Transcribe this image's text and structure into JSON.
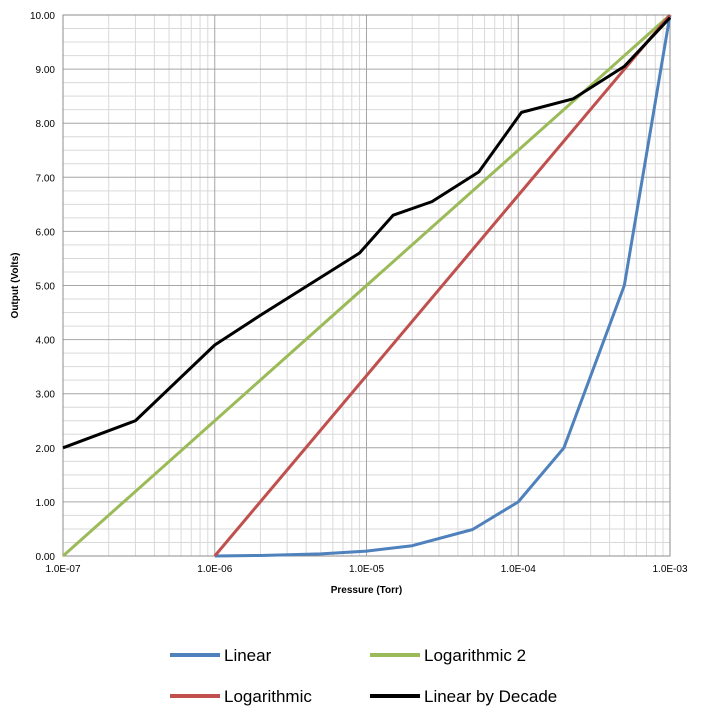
{
  "chart_data": {
    "type": "line",
    "title": "",
    "xlabel": "Pressure (Torr)",
    "ylabel": "Output (Volts)",
    "x_scale": "log",
    "xlim": [
      1e-07,
      0.001
    ],
    "ylim": [
      0,
      10
    ],
    "grid": true,
    "legend_position": "bottom",
    "x_ticks": [
      {
        "value": 1e-07,
        "label": "1.0E-07"
      },
      {
        "value": 1e-06,
        "label": "1.0E-06"
      },
      {
        "value": 1e-05,
        "label": "1.0E-05"
      },
      {
        "value": 0.0001,
        "label": "1.0E-04"
      },
      {
        "value": 0.001,
        "label": "1.0E-03"
      }
    ],
    "y_ticks": [
      {
        "value": 0,
        "label": "0.00"
      },
      {
        "value": 1,
        "label": "1.00"
      },
      {
        "value": 2,
        "label": "2.00"
      },
      {
        "value": 3,
        "label": "3.00"
      },
      {
        "value": 4,
        "label": "4.00"
      },
      {
        "value": 5,
        "label": "5.00"
      },
      {
        "value": 6,
        "label": "6.00"
      },
      {
        "value": 7,
        "label": "7.00"
      },
      {
        "value": 8,
        "label": "8.00"
      },
      {
        "value": 9,
        "label": "9.00"
      },
      {
        "value": 10,
        "label": "10.00"
      }
    ],
    "series": [
      {
        "name": "Linear",
        "color": "#4f81bd",
        "x": [
          1e-06,
          2e-06,
          5e-06,
          1e-05,
          2e-05,
          5e-05,
          0.0001,
          0.0002,
          0.0005,
          0.001
        ],
        "y": [
          0.0,
          0.01,
          0.04,
          0.09,
          0.19,
          0.49,
          1.0,
          2.0,
          5.0,
          10.0
        ]
      },
      {
        "name": "Logarithmic 2",
        "color": "#9bbb59",
        "x": [
          1e-07,
          0.001
        ],
        "y": [
          0.0,
          10.0
        ]
      },
      {
        "name": "Logarithmic",
        "color": "#c0504d",
        "x": [
          1e-06,
          0.001
        ],
        "y": [
          0.0,
          10.0
        ]
      },
      {
        "name": "Linear by Decade",
        "color": "#000000",
        "x": [
          1e-07,
          3e-07,
          1e-06,
          2e-06,
          9e-06,
          1.5e-05,
          2.7e-05,
          5.5e-05,
          0.000105,
          0.00023,
          0.0005,
          0.001
        ],
        "y": [
          2.0,
          2.5,
          3.9,
          4.45,
          5.6,
          6.3,
          6.55,
          7.1,
          8.2,
          8.45,
          9.05,
          9.95
        ]
      }
    ]
  }
}
